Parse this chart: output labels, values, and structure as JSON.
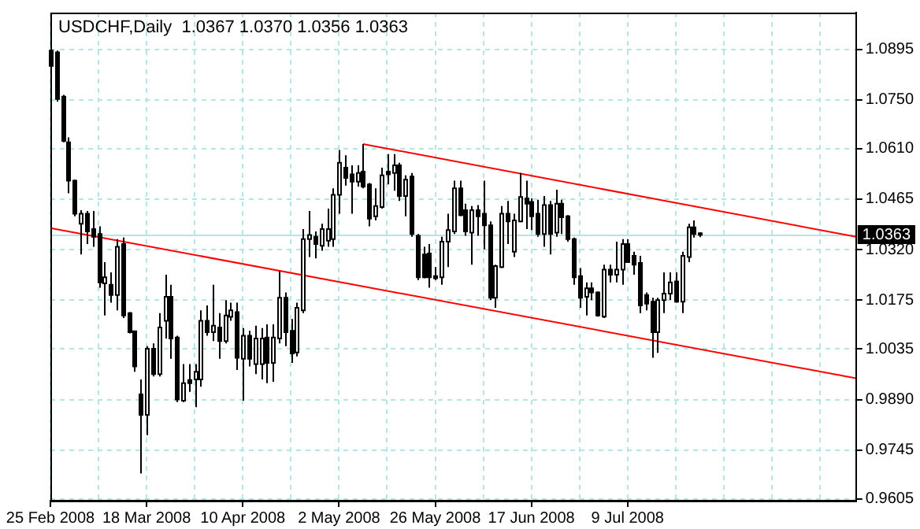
{
  "chart_data": {
    "type": "candlestick",
    "title": "USDCHF,Daily  1.0367 1.0370 1.0356 1.0363",
    "grid": true,
    "colors": [
      "#ffffff",
      "#000000",
      "#000000",
      "#000000",
      "#000000",
      "#ffffff",
      "#000000",
      "#000000",
      "#000000",
      "#ffffff",
      "#000000",
      "#ffffff",
      "#000000",
      "#000000",
      "#000000",
      "#000000",
      "#ffffff",
      "#000000",
      "#ffffff",
      "#ffffff",
      "#000000",
      "#000000",
      "#ffffff",
      "#000000",
      "#ffffff",
      "#ffffff",
      "#000000",
      "#ffffff",
      "#000000",
      "#ffffff",
      "#ffffff",
      "#000000",
      "#ffffff",
      "#000000",
      "#ffffff",
      "#ffffff",
      "#000000",
      "#ffffff",
      "#ffffff",
      "#000000",
      "#000000",
      "#ffffff",
      "#ffffff",
      "#ffffff",
      "#000000",
      "#ffffff",
      "#ffffff",
      "#ffffff",
      "#ffffff",
      "#000000",
      "#000000",
      "#ffffff",
      "#000000",
      "#000000",
      "#ffffff",
      "#ffffff",
      "#000000",
      "#ffffff",
      "#000000",
      "#ffffff",
      "#000000",
      "#000000",
      "#000000",
      "#000000",
      "#000000",
      "#ffffff",
      "#ffffff",
      "#ffffff",
      "#000000",
      "#000000",
      "#ffffff",
      "#000000",
      "#000000",
      "#000000",
      "#ffffff",
      "#ffffff",
      "#000000",
      "#ffffff",
      "#ffffff",
      "#000000",
      "#000000",
      "#000000",
      "#ffffff",
      "#000000",
      "#ffffff",
      "#000000",
      "#000000",
      "#000000",
      "#000000",
      "#ffffff",
      "#000000",
      "#000000",
      "#ffffff",
      "#000000",
      "#ffffff",
      "#ffffff",
      "#000000",
      "#000000",
      "#000000",
      "#000000",
      "#000000",
      "#ffffff",
      "#ffffff",
      "#ffffff",
      "#000000",
      "#ffffff",
      "#ffffff",
      "#000000",
      "#000000",
      null,
      null,
      null,
      null,
      null,
      null,
      null,
      null,
      null,
      null,
      null,
      null,
      null,
      null,
      null,
      null,
      null,
      null,
      null,
      null,
      null,
      null,
      null,
      null,
      null,
      null
    ],
    "categories": [
      "25 Feb 2008",
      null,
      null,
      null,
      null,
      null,
      null,
      null,
      null,
      null,
      null,
      null,
      null,
      null,
      null,
      null,
      "18 Mar 2008",
      null,
      null,
      null,
      null,
      null,
      null,
      null,
      null,
      null,
      null,
      null,
      null,
      null,
      null,
      null,
      "10 Apr 2008",
      null,
      null,
      null,
      null,
      null,
      null,
      null,
      null,
      null,
      null,
      null,
      null,
      null,
      null,
      null,
      "2 May 2008",
      null,
      null,
      null,
      null,
      null,
      null,
      null,
      null,
      null,
      null,
      null,
      null,
      null,
      null,
      null,
      "26 May 2008",
      null,
      null,
      null,
      null,
      null,
      null,
      null,
      null,
      null,
      null,
      null,
      null,
      null,
      null,
      null,
      "17 Jun 2008",
      null,
      null,
      null,
      null,
      null,
      null,
      null,
      null,
      null,
      null,
      null,
      null,
      null,
      null,
      null,
      "9 Jul 2008",
      null,
      null,
      null,
      null,
      null,
      null,
      null,
      null,
      null,
      null,
      null,
      null,
      null,
      null,
      null,
      null,
      null,
      null,
      null,
      null,
      null,
      null,
      null,
      null,
      null,
      null,
      null,
      null,
      null,
      null,
      null,
      null,
      null,
      null,
      null,
      null,
      null,
      null
    ],
    "ohlc": [
      [
        1.0847,
        1.0927,
        1.0842,
        1.0891
      ],
      [
        1.0886,
        1.0891,
        1.0745,
        1.0752
      ],
      [
        1.0759,
        1.0764,
        1.0628,
        1.0632
      ],
      [
        1.0628,
        1.0642,
        1.0482,
        1.0518
      ],
      [
        1.0518,
        1.0521,
        1.0416,
        1.0423
      ],
      [
        1.0394,
        1.0433,
        1.0306,
        1.0423
      ],
      [
        1.0423,
        1.0431,
        1.0336,
        1.0372
      ],
      [
        1.0379,
        1.0431,
        1.0328,
        1.0357
      ],
      [
        1.0365,
        1.0387,
        1.0211,
        1.0226
      ],
      [
        1.0223,
        1.0284,
        1.0131,
        1.0241
      ],
      [
        1.0219,
        1.0255,
        1.0168,
        1.019
      ],
      [
        1.019,
        1.035,
        1.0146,
        1.0328
      ],
      [
        1.0336,
        1.0355,
        1.0124,
        1.0131
      ],
      [
        1.0138,
        1.0141,
        1.008,
        1.0083
      ],
      [
        1.0086,
        1.0087,
        0.997,
        0.9985
      ],
      [
        0.9905,
        0.9948,
        0.9678,
        0.9846
      ],
      [
        0.9846,
        1.0043,
        0.9788,
        1.0036
      ],
      [
        1.0036,
        1.0051,
        0.9956,
        0.9963
      ],
      [
        0.9963,
        1.0138,
        0.9956,
        1.0097
      ],
      [
        1.0116,
        1.0248,
        1.0065,
        1.0185
      ],
      [
        1.0185,
        1.0219,
        1.0007,
        1.0065
      ],
      [
        1.0068,
        1.0073,
        0.9883,
        0.989
      ],
      [
        0.9887,
        0.9992,
        0.9883,
        0.9937
      ],
      [
        0.9946,
        0.9992,
        0.9912,
        0.9937
      ],
      [
        0.9948,
        0.9992,
        0.9868,
        0.997
      ],
      [
        0.9948,
        1.0146,
        0.9927,
        1.0116
      ],
      [
        1.0116,
        1.016,
        1.0073,
        1.0083
      ],
      [
        1.0083,
        1.0219,
        1.0058,
        1.0102
      ],
      [
        1.0097,
        1.0138,
        1.0007,
        1.0058
      ],
      [
        1.0058,
        1.0175,
        1.0051,
        1.0131
      ],
      [
        1.0127,
        1.0168,
        1.0116,
        1.0146
      ],
      [
        1.0141,
        1.0168,
        0.9975,
        1.001
      ],
      [
        1.0007,
        1.0095,
        0.9887,
        1.0073
      ],
      [
        1.0073,
        1.0087,
        0.9985,
        1.0007
      ],
      [
        0.9992,
        1.0102,
        0.9963,
        1.0065
      ],
      [
        0.9992,
        1.0095,
        0.9948,
        1.0065
      ],
      [
        1.0068,
        1.0106,
        0.9937,
        0.9995
      ],
      [
        0.9995,
        1.0106,
        0.9941,
        1.0068
      ],
      [
        1.0065,
        1.0258,
        1.0051,
        1.0182
      ],
      [
        1.0182,
        1.0197,
        1.0043,
        1.0083
      ],
      [
        1.0087,
        1.0121,
        0.9995,
        1.0022
      ],
      [
        1.0025,
        1.0168,
        1.0014,
        1.0153
      ],
      [
        1.0146,
        1.0379,
        1.0138,
        1.035
      ],
      [
        1.035,
        1.0431,
        1.0299,
        1.0362
      ],
      [
        1.0357,
        1.0372,
        1.0295,
        1.0336
      ],
      [
        1.0331,
        1.0394,
        1.0317,
        1.0379
      ],
      [
        1.0346,
        1.0438,
        1.0328,
        1.0379
      ],
      [
        1.035,
        1.0496,
        1.0328,
        1.0477
      ],
      [
        1.0477,
        1.0606,
        1.0423,
        1.0569
      ],
      [
        1.0555,
        1.0591,
        1.0504,
        1.0526
      ],
      [
        1.0536,
        1.0562,
        1.0423,
        1.0515
      ],
      [
        1.0515,
        1.0562,
        1.0501,
        1.054
      ],
      [
        1.0544,
        1.0623,
        1.0496,
        1.0501
      ],
      [
        1.0507,
        1.0511,
        1.0387,
        1.0409
      ],
      [
        1.0416,
        1.0496,
        1.0404,
        1.0445
      ],
      [
        1.0442,
        1.0555,
        1.0438,
        1.0533
      ],
      [
        1.0544,
        1.0594,
        1.0507,
        1.0536
      ],
      [
        1.054,
        1.0594,
        1.0489,
        1.0562
      ],
      [
        1.0562,
        1.0569,
        1.046,
        1.0474
      ],
      [
        1.0474,
        1.0533,
        1.0416,
        1.0521
      ],
      [
        1.053,
        1.054,
        1.0357,
        1.0365
      ],
      [
        1.036,
        1.0365,
        1.0233,
        1.0241
      ],
      [
        1.0306,
        1.0328,
        1.0238,
        1.0241
      ],
      [
        1.0309,
        1.0336,
        1.0211,
        1.0241
      ],
      [
        1.0244,
        1.027,
        1.0233,
        1.0238
      ],
      [
        1.0241,
        1.0357,
        1.0219,
        1.0343
      ],
      [
        1.0343,
        1.0423,
        1.027,
        1.0376
      ],
      [
        1.0372,
        1.0518,
        1.0365,
        1.0496
      ],
      [
        1.0496,
        1.0518,
        1.0416,
        1.0419
      ],
      [
        1.0433,
        1.0452,
        1.036,
        1.0372
      ],
      [
        1.0369,
        1.0445,
        1.0277,
        1.0433
      ],
      [
        1.0433,
        1.0448,
        1.036,
        1.0416
      ],
      [
        1.0423,
        1.0518,
        1.0321,
        1.039
      ],
      [
        1.039,
        1.0401,
        1.0175,
        1.0182
      ],
      [
        1.0182,
        1.0277,
        1.0153,
        1.0273
      ],
      [
        1.027,
        1.0445,
        1.0267,
        1.0423
      ],
      [
        1.0423,
        1.046,
        1.0336,
        1.0401
      ],
      [
        1.0314,
        1.0423,
        1.0299,
        1.0404
      ],
      [
        1.0401,
        1.054,
        1.0399,
        1.0471
      ],
      [
        1.0467,
        1.0518,
        1.0379,
        1.0452
      ],
      [
        1.0457,
        1.0467,
        1.0376,
        1.0416
      ],
      [
        1.0423,
        1.0463,
        1.0357,
        1.0365
      ],
      [
        1.0365,
        1.0474,
        1.0328,
        1.0448
      ],
      [
        1.0448,
        1.046,
        1.0306,
        1.0365
      ],
      [
        1.0369,
        1.0492,
        1.0357,
        1.0452
      ],
      [
        1.0452,
        1.0463,
        1.0365,
        1.0413
      ],
      [
        1.0416,
        1.0419,
        1.0343,
        1.035
      ],
      [
        1.035,
        1.0355,
        1.0219,
        1.0241
      ],
      [
        1.0244,
        1.0267,
        1.0153,
        1.0182
      ],
      [
        1.0185,
        1.0226,
        1.0131,
        1.0209
      ],
      [
        1.0209,
        1.0226,
        1.0175,
        1.0197
      ],
      [
        1.0197,
        1.02,
        1.0128,
        1.0131
      ],
      [
        1.0128,
        1.0277,
        1.0124,
        1.0263
      ],
      [
        1.0263,
        1.0277,
        1.0226,
        1.0248
      ],
      [
        1.0248,
        1.0343,
        1.0226,
        1.0263
      ],
      [
        1.0263,
        1.035,
        1.0219,
        1.0336
      ],
      [
        1.0336,
        1.035,
        1.0282,
        1.0284
      ],
      [
        1.0302,
        1.0314,
        1.0248,
        1.0277
      ],
      [
        1.0282,
        1.0302,
        1.0138,
        1.016
      ],
      [
        1.019,
        1.0197,
        1.0146,
        1.0165
      ],
      [
        1.0171,
        1.0182,
        1.001,
        1.0083
      ],
      [
        1.0083,
        1.0182,
        1.0024,
        1.0175
      ],
      [
        1.0175,
        1.0255,
        1.0138,
        1.0194
      ],
      [
        1.0194,
        1.0255,
        1.0175,
        1.0226
      ],
      [
        1.0229,
        1.0255,
        1.0168,
        1.0171
      ],
      [
        1.0171,
        1.0314,
        1.0138,
        1.0302
      ],
      [
        1.0299,
        1.0394,
        1.0284,
        1.0384
      ],
      [
        1.0384,
        1.0404,
        1.0355,
        1.0365
      ],
      [
        1.0367,
        1.037,
        1.0356,
        1.0363
      ],
      null,
      null,
      null,
      null,
      null,
      null,
      null,
      null,
      null,
      null,
      null,
      null,
      null,
      null,
      null,
      null,
      null,
      null,
      null,
      null,
      null,
      null,
      null,
      null,
      null,
      null
    ],
    "series": [
      {
        "type": "line",
        "color": "#ff0000",
        "values": [
          null,
          null,
          null,
          null,
          null,
          null,
          null,
          null,
          null,
          null,
          null,
          null,
          null,
          null,
          null,
          null,
          null,
          null,
          null,
          null,
          null,
          null,
          null,
          null,
          null,
          null,
          null,
          null,
          null,
          null,
          null,
          null,
          null,
          null,
          null,
          null,
          null,
          null,
          null,
          null,
          null,
          null,
          null,
          null,
          null,
          null,
          null,
          null,
          null,
          null,
          null,
          null,
          1.0623,
          null,
          null,
          null,
          null,
          null,
          null,
          null,
          null,
          null,
          null,
          null,
          null,
          null,
          null,
          null,
          null,
          null,
          null,
          null,
          null,
          null,
          null,
          null,
          null,
          null,
          null,
          null,
          null,
          null,
          null,
          null,
          null,
          null,
          null,
          null,
          null,
          null,
          null,
          null,
          null,
          null,
          null,
          null,
          null,
          null,
          null,
          null,
          null,
          null,
          null,
          null,
          null,
          null,
          null,
          null,
          null,
          null,
          null,
          null,
          null,
          null,
          null,
          null,
          null,
          null,
          null,
          null,
          null,
          null,
          null,
          null,
          null,
          null,
          null,
          null,
          null,
          null,
          null,
          null,
          null,
          null,
          1.0357
        ]
      },
      {
        "type": "line",
        "color": "#ff0000",
        "values": [
          1.0382,
          null,
          null,
          null,
          null,
          null,
          null,
          null,
          null,
          null,
          null,
          null,
          null,
          null,
          null,
          null,
          null,
          null,
          null,
          null,
          null,
          null,
          null,
          null,
          null,
          null,
          null,
          null,
          null,
          null,
          null,
          null,
          null,
          null,
          null,
          null,
          null,
          null,
          null,
          null,
          null,
          null,
          null,
          null,
          null,
          null,
          null,
          null,
          null,
          null,
          null,
          null,
          null,
          null,
          null,
          null,
          null,
          null,
          null,
          null,
          null,
          null,
          null,
          null,
          null,
          null,
          null,
          null,
          null,
          null,
          null,
          null,
          null,
          null,
          null,
          null,
          null,
          null,
          null,
          null,
          null,
          null,
          null,
          null,
          null,
          null,
          null,
          null,
          null,
          null,
          null,
          null,
          null,
          null,
          null,
          null,
          null,
          null,
          null,
          null,
          null,
          null,
          null,
          null,
          null,
          null,
          null,
          null,
          null,
          null,
          null,
          null,
          null,
          null,
          null,
          null,
          null,
          null,
          null,
          null,
          null,
          null,
          null,
          null,
          null,
          null,
          null,
          null,
          null,
          null,
          null,
          null,
          null,
          null,
          0.9951
        ]
      }
    ],
    "ylim": [
      0.96,
      1.1
    ],
    "yticks": [
      1.0895,
      {
        "value": 1.075,
        "label": "1.0750"
      },
      {
        "value": 1.061,
        "label": "1.0610"
      },
      1.0465,
      {
        "value": 1.032,
        "label": "1.0320"
      },
      1.0175,
      1.0035,
      {
        "value": 0.989,
        "label": "0.9890"
      },
      0.9745,
      0.9605
    ],
    "ref_lines": [
      {
        "axis": "y",
        "value": 1.0363,
        "label": "1.0363",
        "color": "#b4e6e6"
      }
    ]
  }
}
